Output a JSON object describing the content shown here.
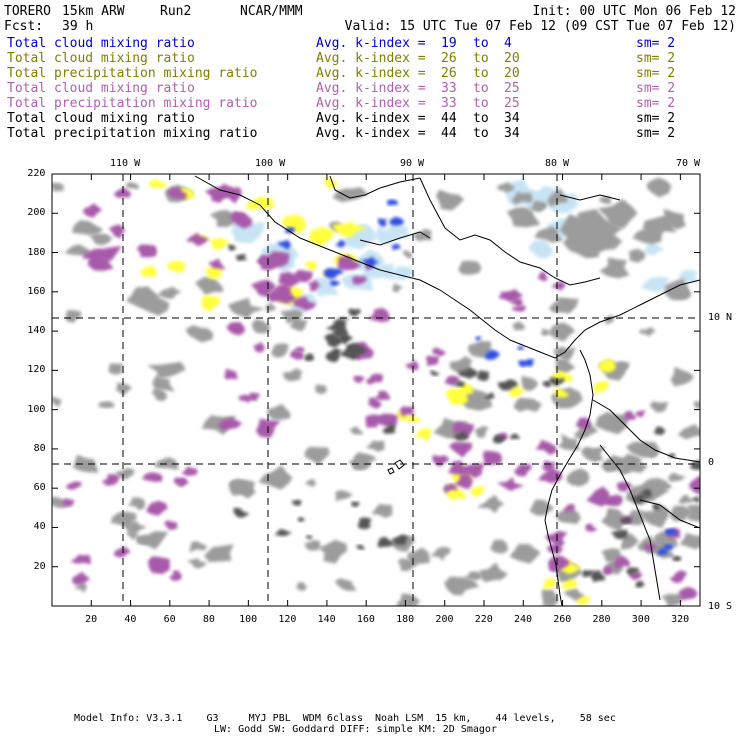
{
  "header": {
    "model": "TORERO",
    "resolution": "15km ARW",
    "run": "Run2",
    "org": "NCAR/MMM",
    "init": "Init: 00 UTC Mon 06 Feb 12",
    "fcst_label": "Fcst:",
    "fcst_value": "39 h",
    "valid": "Valid: 15 UTC Tue 07 Feb 12 (09 CST Tue 07 Feb 12)"
  },
  "legend": [
    {
      "field": "Total cloud mixing ratio",
      "kindex_label": "Avg. k-index =",
      "from": "19",
      "to_label": "to",
      "to": "4",
      "sm": "sm= 2",
      "color": "#0000cc"
    },
    {
      "field": "Total cloud mixing ratio",
      "kindex_label": "Avg. k-index =",
      "from": "26",
      "to_label": "to",
      "to": "20",
      "sm": "sm= 2",
      "color": "#808000"
    },
    {
      "field": "Total precipitation mixing ratio",
      "kindex_label": "Avg. k-index =",
      "from": "26",
      "to_label": "to",
      "to": "20",
      "sm": "sm= 2",
      "color": "#808000"
    },
    {
      "field": "Total cloud mixing ratio",
      "kindex_label": "Avg. k-index =",
      "from": "33",
      "to_label": "to",
      "to": "25",
      "sm": "sm= 2",
      "color": "#b060b0"
    },
    {
      "field": "Total precipitation mixing ratio",
      "kindex_label": "Avg. k-index =",
      "from": "33",
      "to_label": "to",
      "to": "25",
      "sm": "sm= 2",
      "color": "#b060b0"
    },
    {
      "field": "Total cloud mixing ratio",
      "kindex_label": "Avg. k-index =",
      "from": "44",
      "to_label": "to",
      "to": "34",
      "sm": "sm= 2",
      "color": "#000000"
    },
    {
      "field": "Total precipitation mixing ratio",
      "kindex_label": "Avg. k-index =",
      "from": "44",
      "to_label": "to",
      "to": "34",
      "sm": "sm= 2",
      "color": "#000000"
    }
  ],
  "map": {
    "x_ticks": [
      "20",
      "40",
      "60",
      "80",
      "100",
      "120",
      "140",
      "160",
      "180",
      "200",
      "220",
      "240",
      "260",
      "280",
      "300",
      "320"
    ],
    "y_ticks": [
      "20",
      "40",
      "60",
      "80",
      "100",
      "120",
      "140",
      "160",
      "180",
      "200",
      "220"
    ],
    "lon_labels": [
      "110 W",
      "100 W",
      "90 W",
      "80 W",
      "70 W"
    ],
    "lat_labels": [
      "10 N",
      "0",
      "10 S"
    ],
    "colors": {
      "gray": "#9c9c9c",
      "dark": "#555555",
      "purple": "#a85aaa",
      "yellow": "#ffff40",
      "blue": "#3050e0",
      "lightblue": "#c8e4f4"
    }
  },
  "footer": {
    "line1": "Model Info: V3.3.1    G3     MYJ PBL  WDM 6class  Noah LSM  15 km,    44 levels,    58 sec",
    "line2": "LW: Godd SW: Goddard DIFF: simple KM: 2D Smagor"
  }
}
